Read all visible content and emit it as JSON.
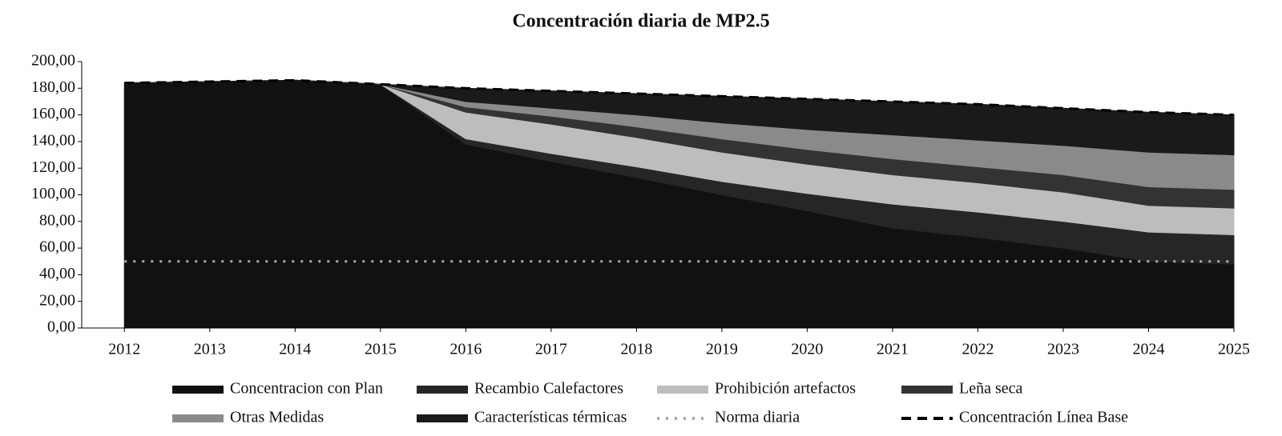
{
  "chart_data": {
    "type": "stacked-area",
    "title": "Concentración diaria de MP2.5",
    "x": [
      2012,
      2013,
      2014,
      2015,
      2016,
      2017,
      2018,
      2019,
      2020,
      2021,
      2022,
      2023,
      2024,
      2025
    ],
    "xlim": [
      2011.5,
      2025
    ],
    "xticks": [
      2012,
      2013,
      2014,
      2015,
      2016,
      2017,
      2018,
      2019,
      2020,
      2021,
      2022,
      2023,
      2024,
      2025
    ],
    "ylim": [
      0,
      200
    ],
    "yticks": [
      {
        "value": 0,
        "label": "0,00"
      },
      {
        "value": 20,
        "label": "20,00"
      },
      {
        "value": 40,
        "label": "40,00"
      },
      {
        "value": 60,
        "label": "60,00"
      },
      {
        "value": 80,
        "label": "80,00"
      },
      {
        "value": 100,
        "label": "100,00"
      },
      {
        "value": 120,
        "label": "120,00"
      },
      {
        "value": 140,
        "label": "140,00"
      },
      {
        "value": 160,
        "label": "160,00"
      },
      {
        "value": 180,
        "label": "180,00"
      },
      {
        "value": 200,
        "label": "200,00"
      }
    ],
    "series": [
      {
        "name": "Concentracion con Plan",
        "kind": "area",
        "color": "#111111",
        "values": [
          184,
          185,
          186,
          183,
          138,
          125,
          113,
          100,
          88,
          75,
          68,
          60,
          50,
          48
        ]
      },
      {
        "name": "Recambio Calefactores",
        "kind": "area",
        "color": "#262626",
        "values": [
          0,
          0,
          0,
          0,
          4,
          6,
          8,
          10,
          13,
          18,
          19,
          20,
          22,
          22
        ]
      },
      {
        "name": "Prohibición artefactos",
        "kind": "area",
        "color": "#bdbdbd",
        "values": [
          0,
          0,
          0,
          0,
          20,
          22,
          22,
          22,
          22,
          22,
          22,
          22,
          20,
          20
        ]
      },
      {
        "name": "Leña seca",
        "kind": "area",
        "color": "#333333",
        "values": [
          0,
          0,
          0,
          0,
          4,
          6,
          8,
          10,
          11,
          12,
          12,
          13,
          14,
          14
        ]
      },
      {
        "name": "Otras Medidas",
        "kind": "area",
        "color": "#8a8a8a",
        "values": [
          0,
          0,
          0,
          0,
          4,
          6,
          9,
          12,
          15,
          18,
          20,
          22,
          26,
          26
        ]
      },
      {
        "name": "Características térmicas",
        "kind": "area",
        "color": "#1a1a1a",
        "values": [
          0,
          0,
          0,
          0,
          10,
          13,
          16,
          20,
          23,
          25,
          27,
          28,
          30,
          30
        ]
      },
      {
        "name": "Norma diaria",
        "kind": "line",
        "dash": "3,8",
        "color": "#aaaaaa",
        "values": [
          50,
          50,
          50,
          50,
          50,
          50,
          50,
          50,
          50,
          50,
          50,
          50,
          50,
          50
        ]
      },
      {
        "name": "Concentración Línea Base",
        "kind": "line",
        "dash": "12,8",
        "color": "#000000",
        "values": [
          184,
          185,
          186,
          183,
          180,
          178,
          176,
          174,
          172,
          170,
          168,
          165,
          162,
          160
        ]
      }
    ]
  }
}
